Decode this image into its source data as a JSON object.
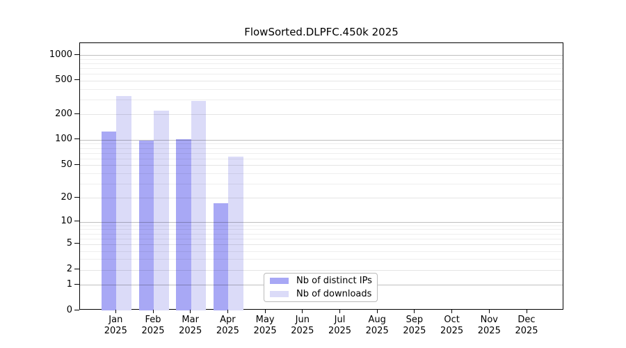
{
  "chart_data": {
    "type": "bar",
    "title": "FlowSorted.DLPFC.450k 2025",
    "categories": [
      "Jan",
      "Feb",
      "Mar",
      "Apr",
      "May",
      "Jun",
      "Jul",
      "Aug",
      "Sep",
      "Oct",
      "Nov",
      "Dec"
    ],
    "year": "2025",
    "series": [
      {
        "name": "Nb of distinct IPs",
        "color": "#a8a8f5",
        "values": [
          125,
          97,
          102,
          17,
          null,
          null,
          null,
          null,
          null,
          null,
          null,
          null
        ]
      },
      {
        "name": "Nb of downloads",
        "color": "#dbdbf8",
        "values": [
          330,
          220,
          290,
          63,
          null,
          null,
          null,
          null,
          null,
          null,
          null,
          null
        ]
      }
    ],
    "ylabel": "",
    "xlabel": "",
    "yscale": "log10(value+1)",
    "ylim": [
      0,
      1400
    ],
    "ytick_labels": [
      0,
      1,
      2,
      5,
      10,
      20,
      50,
      100,
      200,
      500,
      1000
    ],
    "gridlines": {
      "decade": [
        1,
        10,
        100,
        1000
      ],
      "labeled": [
        2,
        5,
        20,
        50,
        200,
        500
      ],
      "minor": [
        3,
        4,
        6,
        7,
        8,
        9,
        30,
        40,
        60,
        70,
        80,
        90,
        300,
        400,
        600,
        700,
        800,
        900
      ]
    },
    "grid": "horizontal",
    "legend_position": "inside-bottom-center"
  }
}
